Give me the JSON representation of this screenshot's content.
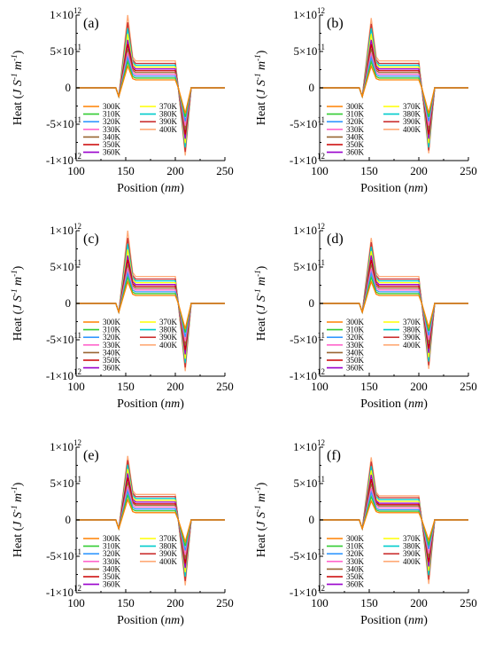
{
  "axes": {
    "xlabel": "Position",
    "xlabel_unit": "nm",
    "ylabel": "Heat",
    "ylabel_unit_J": "J S",
    "ylabel_unit_exp1": "-1",
    "ylabel_unit_m": "m",
    "ylabel_unit_exp2": "-1",
    "x_ticks": [
      "100",
      "150",
      "200",
      "250"
    ],
    "y_ticks": [
      {
        "mant": "1×10",
        "exp": "12"
      },
      {
        "mant": "5×10",
        "exp": "11"
      },
      {
        "mant": "0",
        "exp": ""
      },
      {
        "mant": "-5×10",
        "exp": "11"
      },
      {
        "mant": "-1×10",
        "exp": "12"
      }
    ]
  },
  "legend": {
    "labels": [
      "300K",
      "310K",
      "320K",
      "330K",
      "340K",
      "350K",
      "360K",
      "370K",
      "380K",
      "390K",
      "400K"
    ],
    "colors": [
      "#ff8000",
      "#33cc33",
      "#3399ff",
      "#ff66cc",
      "#996633",
      "#cc0000",
      "#9900cc",
      "#ffff00",
      "#00cccc",
      "#cc3333",
      "#ffaa77"
    ]
  },
  "chart_data": [
    {
      "type": "line",
      "panel": "(a)",
      "xlim": [
        100,
        250
      ],
      "ylim": [
        -1000000000000.0,
        1000000000000.0
      ],
      "series_note": "11 temperature series 300K-400K",
      "x": [
        100,
        140,
        143,
        152,
        157,
        160,
        200,
        203,
        210,
        216,
        250
      ],
      "series": [
        {
          "name": "300K",
          "peak": 300000000000.0,
          "plateau": 110000000000.0,
          "trough": -350000000000.0
        },
        {
          "name": "310K",
          "peak": 360000000000.0,
          "plateau": 135000000000.0,
          "trough": -400000000000.0
        },
        {
          "name": "320K",
          "peak": 420000000000.0,
          "plateau": 160000000000.0,
          "trough": -460000000000.0
        },
        {
          "name": "330K",
          "peak": 480000000000.0,
          "plateau": 185000000000.0,
          "trough": -520000000000.0
        },
        {
          "name": "340K",
          "peak": 540000000000.0,
          "plateau": 210000000000.0,
          "trough": -580000000000.0
        },
        {
          "name": "350K",
          "peak": 600000000000.0,
          "plateau": 235000000000.0,
          "trough": -640000000000.0
        },
        {
          "name": "360K",
          "peak": 660000000000.0,
          "plateau": 260000000000.0,
          "trough": -700000000000.0
        },
        {
          "name": "370K",
          "peak": 740000000000.0,
          "plateau": 285000000000.0,
          "trough": -760000000000.0
        },
        {
          "name": "380K",
          "peak": 820000000000.0,
          "plateau": 310000000000.0,
          "trough": -820000000000.0
        },
        {
          "name": "390K",
          "peak": 900000000000.0,
          "plateau": 335000000000.0,
          "trough": -880000000000.0
        },
        {
          "name": "400K",
          "peak": 1000000000000.0,
          "plateau": 370000000000.0,
          "trough": -930000000000.0
        }
      ]
    },
    {
      "type": "line",
      "panel": "(b)",
      "xlim": [
        100,
        250
      ],
      "ylim": [
        -1000000000000.0,
        1000000000000.0
      ],
      "x": [
        100,
        140,
        143,
        152,
        157,
        160,
        200,
        203,
        210,
        216,
        250
      ],
      "series": [
        {
          "name": "300K",
          "peak": 300000000000.0,
          "plateau": 110000000000.0,
          "trough": -350000000000.0
        },
        {
          "name": "310K",
          "peak": 360000000000.0,
          "plateau": 135000000000.0,
          "trough": -400000000000.0
        },
        {
          "name": "320K",
          "peak": 420000000000.0,
          "plateau": 160000000000.0,
          "trough": -460000000000.0
        },
        {
          "name": "330K",
          "peak": 480000000000.0,
          "plateau": 185000000000.0,
          "trough": -520000000000.0
        },
        {
          "name": "340K",
          "peak": 540000000000.0,
          "plateau": 210000000000.0,
          "trough": -580000000000.0
        },
        {
          "name": "350K",
          "peak": 600000000000.0,
          "plateau": 235000000000.0,
          "trough": -640000000000.0
        },
        {
          "name": "360K",
          "peak": 660000000000.0,
          "plateau": 260000000000.0,
          "trough": -700000000000.0
        },
        {
          "name": "370K",
          "peak": 740000000000.0,
          "plateau": 285000000000.0,
          "trough": -760000000000.0
        },
        {
          "name": "380K",
          "peak": 820000000000.0,
          "plateau": 310000000000.0,
          "trough": -820000000000.0
        },
        {
          "name": "390K",
          "peak": 880000000000.0,
          "plateau": 335000000000.0,
          "trough": -860000000000.0
        },
        {
          "name": "400K",
          "peak": 960000000000.0,
          "plateau": 370000000000.0,
          "trough": -900000000000.0
        }
      ]
    },
    {
      "type": "line",
      "panel": "(c)",
      "xlim": [
        100,
        250
      ],
      "ylim": [
        -1000000000000.0,
        1000000000000.0
      ],
      "x": [
        100,
        140,
        143,
        152,
        157,
        160,
        200,
        203,
        210,
        216,
        250
      ],
      "series": [
        {
          "name": "300K",
          "peak": 300000000000.0,
          "plateau": 110000000000.0,
          "trough": -350000000000.0
        },
        {
          "name": "310K",
          "peak": 360000000000.0,
          "plateau": 135000000000.0,
          "trough": -400000000000.0
        },
        {
          "name": "320K",
          "peak": 420000000000.0,
          "plateau": 160000000000.0,
          "trough": -460000000000.0
        },
        {
          "name": "330K",
          "peak": 480000000000.0,
          "plateau": 185000000000.0,
          "trough": -520000000000.0
        },
        {
          "name": "340K",
          "peak": 540000000000.0,
          "plateau": 210000000000.0,
          "trough": -580000000000.0
        },
        {
          "name": "350K",
          "peak": 600000000000.0,
          "plateau": 235000000000.0,
          "trough": -640000000000.0
        },
        {
          "name": "360K",
          "peak": 660000000000.0,
          "plateau": 260000000000.0,
          "trough": -700000000000.0
        },
        {
          "name": "370K",
          "peak": 740000000000.0,
          "plateau": 285000000000.0,
          "trough": -760000000000.0
        },
        {
          "name": "380K",
          "peak": 820000000000.0,
          "plateau": 310000000000.0,
          "trough": -820000000000.0
        },
        {
          "name": "390K",
          "peak": 900000000000.0,
          "plateau": 335000000000.0,
          "trough": -880000000000.0
        },
        {
          "name": "400K",
          "peak": 1000000000000.0,
          "plateau": 370000000000.0,
          "trough": -930000000000.0
        }
      ]
    },
    {
      "type": "line",
      "panel": "(d)",
      "xlim": [
        100,
        250
      ],
      "ylim": [
        -1000000000000.0,
        1000000000000.0
      ],
      "x": [
        100,
        140,
        143,
        152,
        157,
        160,
        200,
        203,
        210,
        216,
        250
      ],
      "series": [
        {
          "name": "300K",
          "peak": 300000000000.0,
          "plateau": 110000000000.0,
          "trough": -330000000000.0
        },
        {
          "name": "310K",
          "peak": 360000000000.0,
          "plateau": 135000000000.0,
          "trough": -380000000000.0
        },
        {
          "name": "320K",
          "peak": 420000000000.0,
          "plateau": 160000000000.0,
          "trough": -440000000000.0
        },
        {
          "name": "330K",
          "peak": 480000000000.0,
          "plateau": 185000000000.0,
          "trough": -500000000000.0
        },
        {
          "name": "340K",
          "peak": 540000000000.0,
          "plateau": 210000000000.0,
          "trough": -560000000000.0
        },
        {
          "name": "350K",
          "peak": 600000000000.0,
          "plateau": 235000000000.0,
          "trough": -620000000000.0
        },
        {
          "name": "360K",
          "peak": 660000000000.0,
          "plateau": 260000000000.0,
          "trough": -680000000000.0
        },
        {
          "name": "370K",
          "peak": 720000000000.0,
          "plateau": 285000000000.0,
          "trough": -740000000000.0
        },
        {
          "name": "380K",
          "peak": 780000000000.0,
          "plateau": 310000000000.0,
          "trough": -800000000000.0
        },
        {
          "name": "390K",
          "peak": 840000000000.0,
          "plateau": 335000000000.0,
          "trough": -850000000000.0
        },
        {
          "name": "400K",
          "peak": 900000000000.0,
          "plateau": 370000000000.0,
          "trough": -900000000000.0
        }
      ]
    },
    {
      "type": "line",
      "panel": "(e)",
      "xlim": [
        100,
        250
      ],
      "ylim": [
        -1000000000000.0,
        1000000000000.0
      ],
      "x": [
        100,
        140,
        143,
        152,
        157,
        160,
        200,
        203,
        210,
        216,
        250
      ],
      "series": [
        {
          "name": "300K",
          "peak": 280000000000.0,
          "plateau": 100000000000.0,
          "trough": -300000000000.0
        },
        {
          "name": "310K",
          "peak": 340000000000.0,
          "plateau": 125000000000.0,
          "trough": -360000000000.0
        },
        {
          "name": "320K",
          "peak": 400000000000.0,
          "plateau": 150000000000.0,
          "trough": -420000000000.0
        },
        {
          "name": "330K",
          "peak": 460000000000.0,
          "plateau": 175000000000.0,
          "trough": -480000000000.0
        },
        {
          "name": "340K",
          "peak": 520000000000.0,
          "plateau": 200000000000.0,
          "trough": -540000000000.0
        },
        {
          "name": "350K",
          "peak": 580000000000.0,
          "plateau": 220000000000.0,
          "trough": -600000000000.0
        },
        {
          "name": "360K",
          "peak": 640000000000.0,
          "plateau": 245000000000.0,
          "trough": -660000000000.0
        },
        {
          "name": "370K",
          "peak": 700000000000.0,
          "plateau": 270000000000.0,
          "trough": -720000000000.0
        },
        {
          "name": "380K",
          "peak": 760000000000.0,
          "plateau": 295000000000.0,
          "trough": -780000000000.0
        },
        {
          "name": "390K",
          "peak": 820000000000.0,
          "plateau": 320000000000.0,
          "trough": -840000000000.0
        },
        {
          "name": "400K",
          "peak": 880000000000.0,
          "plateau": 350000000000.0,
          "trough": -900000000000.0
        }
      ]
    },
    {
      "type": "line",
      "panel": "(f)",
      "xlim": [
        100,
        250
      ],
      "ylim": [
        -1000000000000.0,
        1000000000000.0
      ],
      "x": [
        100,
        140,
        143,
        152,
        157,
        160,
        200,
        203,
        210,
        216,
        250
      ],
      "series": [
        {
          "name": "300K",
          "peak": 260000000000.0,
          "plateau": 100000000000.0,
          "trough": -280000000000.0
        },
        {
          "name": "310K",
          "peak": 320000000000.0,
          "plateau": 120000000000.0,
          "trough": -340000000000.0
        },
        {
          "name": "320K",
          "peak": 380000000000.0,
          "plateau": 140000000000.0,
          "trough": -400000000000.0
        },
        {
          "name": "330K",
          "peak": 440000000000.0,
          "plateau": 165000000000.0,
          "trough": -460000000000.0
        },
        {
          "name": "340K",
          "peak": 500000000000.0,
          "plateau": 190000000000.0,
          "trough": -520000000000.0
        },
        {
          "name": "350K",
          "peak": 560000000000.0,
          "plateau": 210000000000.0,
          "trough": -580000000000.0
        },
        {
          "name": "360K",
          "peak": 620000000000.0,
          "plateau": 230000000000.0,
          "trough": -640000000000.0
        },
        {
          "name": "370K",
          "peak": 680000000000.0,
          "plateau": 255000000000.0,
          "trough": -700000000000.0
        },
        {
          "name": "380K",
          "peak": 740000000000.0,
          "plateau": 280000000000.0,
          "trough": -760000000000.0
        },
        {
          "name": "390K",
          "peak": 800000000000.0,
          "plateau": 305000000000.0,
          "trough": -820000000000.0
        },
        {
          "name": "400K",
          "peak": 860000000000.0,
          "plateau": 330000000000.0,
          "trough": -880000000000.0
        }
      ]
    }
  ]
}
